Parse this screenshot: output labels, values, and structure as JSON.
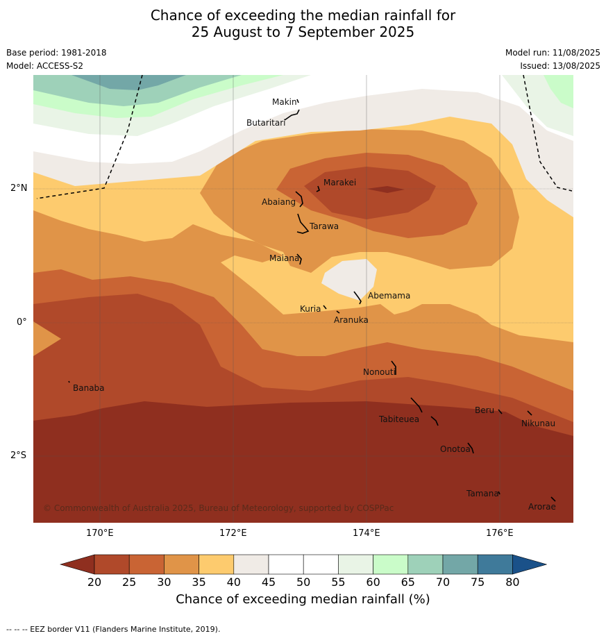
{
  "title": {
    "line1": "Chance of exceeding the median rainfall for",
    "line2": "25 August to 7 September 2025"
  },
  "meta": {
    "base_period": "Base period: 1981-2018",
    "model": "Model: ACCESS-S2",
    "model_run": "Model run: 11/08/2025",
    "issued": "Issued: 13/08/2025"
  },
  "map": {
    "copyright": "© Commonwealth of Australia 2025, Bureau of Meteorology, supported by COSPPac",
    "lon_labels": [
      "170°E",
      "172°E",
      "174°E",
      "176°E"
    ],
    "lat_labels": [
      "2°N",
      "0°",
      "2°S"
    ],
    "places": [
      "Makin",
      "Butaritari",
      "Marakei",
      "Abaiang",
      "Tarawa",
      "Maiana",
      "Abemama",
      "Kuria",
      "Aranuka",
      "Nonouti",
      "Banaba",
      "Beru",
      "Nikunau",
      "Tabiteuea",
      "Onotoa",
      "Tamana",
      "Arorae"
    ]
  },
  "colorbar": {
    "ticks": [
      "20",
      "25",
      "30",
      "35",
      "40",
      "45",
      "50",
      "55",
      "60",
      "65",
      "70",
      "75",
      "80"
    ],
    "colors": [
      "#b0492a",
      "#c96434",
      "#e09448",
      "#fdcb6e",
      "#f0ebe6",
      "#ffffff",
      "#ffffff",
      "#e9f4e6",
      "#cafcc9",
      "#9ed1b9",
      "#73a7a7",
      "#3f7a9a"
    ],
    "under_color": "#8f2f1f",
    "over_color": "#1a5189",
    "label": "Chance of exceeding median rainfall (%)"
  },
  "footer": {
    "eez_note": "--  --  -- EEZ border V11 (Flanders Marine Institute, 2019)."
  }
}
